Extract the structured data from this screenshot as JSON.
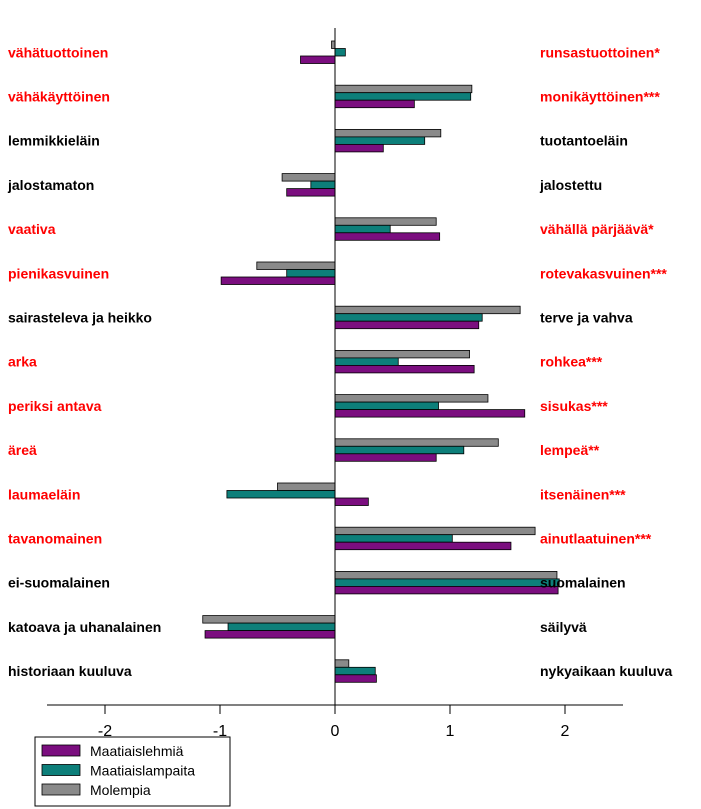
{
  "chart_data": {
    "type": "bar",
    "orientation": "horizontal",
    "x_ticks": [
      "-2",
      "-1",
      "0",
      "1",
      "2"
    ],
    "xlim": [
      -2.5,
      2.5
    ],
    "grid": false,
    "legend_position": "bottom-left",
    "colors": {
      "Maatiaislehmiä": "#7b0e7f",
      "Maatiaislampaita": "#0d7f7a",
      "Molempia": "#8a8a8a",
      "significant": "#ff0000",
      "normal": "#000000"
    },
    "items": [
      {
        "left": "vähätuottoinen",
        "right": "runsastuottoinen*",
        "significant": true
      },
      {
        "left": "vähäkäyttöinen",
        "right": "monikäyttöinen***",
        "significant": true
      },
      {
        "left": "lemmikkieläin",
        "right": "tuotantoeläin",
        "significant": false
      },
      {
        "left": "jalostamaton",
        "right": "jalostettu",
        "significant": false
      },
      {
        "left": "vaativa",
        "right": "vähällä pärjäävä*",
        "significant": true
      },
      {
        "left": "pienikasvuinen",
        "right": "rotevakasvuinen***",
        "significant": true
      },
      {
        "left": "sairasteleva ja heikko",
        "right": "terve ja vahva",
        "significant": false
      },
      {
        "left": "arka",
        "right": "rohkea***",
        "significant": true
      },
      {
        "left": "periksi antava",
        "right": "sisukas***",
        "significant": true
      },
      {
        "left": "äreä",
        "right": "lempeä**",
        "significant": true
      },
      {
        "left": "laumaeläin",
        "right": "itsenäinen***",
        "significant": true
      },
      {
        "left": "tavanomainen",
        "right": "ainutlaatuinen***",
        "significant": true
      },
      {
        "left": "ei-suomalainen",
        "right": "suomalainen",
        "significant": false
      },
      {
        "left": "katoava ja uhanalainen",
        "right": "säilyvä",
        "significant": false
      },
      {
        "left": "historiaan kuuluva",
        "right": "nykyaikaan kuuluva",
        "significant": false
      }
    ],
    "series": [
      {
        "name": "Molempia",
        "values": [
          -0.03,
          1.19,
          0.92,
          -0.46,
          0.88,
          -0.68,
          1.61,
          1.17,
          1.33,
          1.42,
          -0.5,
          1.74,
          1.93,
          -1.15,
          0.12
        ]
      },
      {
        "name": "Maatiaislampaita",
        "values": [
          0.09,
          1.18,
          0.78,
          -0.21,
          0.48,
          -0.42,
          1.28,
          0.55,
          0.9,
          1.12,
          -0.94,
          1.02,
          1.95,
          -0.93,
          0.35
        ]
      },
      {
        "name": "Maatiaislehmiä",
        "values": [
          -0.3,
          0.69,
          0.42,
          -0.42,
          0.91,
          -0.99,
          1.25,
          1.21,
          1.65,
          0.88,
          0.29,
          1.53,
          1.94,
          -1.13,
          0.36
        ]
      }
    ]
  }
}
